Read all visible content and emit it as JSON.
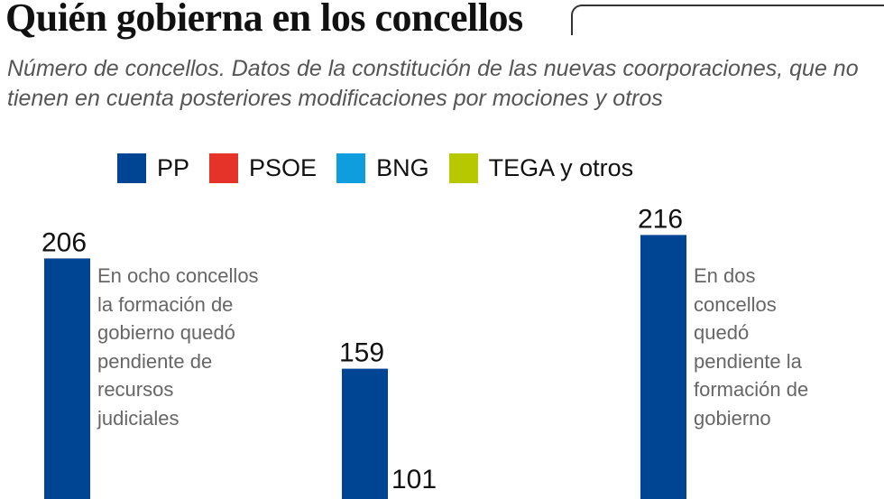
{
  "title": "Quién gobierna en los concellos",
  "subtitle": "Número de concellos. Datos de la constitución de las nuevas coorporaciones, que no tienen en cuenta posteriores modificaciones por mociones y otros",
  "legend": [
    {
      "label": "PP",
      "color": "#004494"
    },
    {
      "label": "PSOE",
      "color": "#e5332a"
    },
    {
      "label": "BNG",
      "color": "#0f9ddd"
    },
    {
      "label": "TEGA y otros",
      "color": "#b7c800"
    }
  ],
  "notes": [
    "En ocho concellos la formación de gobierno quedó pendiente de recursos judiciales",
    "En dos concellos quedó pendiente la formación de gobierno"
  ],
  "chart_data": {
    "type": "bar",
    "title": "Quién gobierna en los concellos",
    "categories": [
      "",
      "",
      ""
    ],
    "series": [
      {
        "name": "PP",
        "color": "#004494",
        "values": [
          206,
          159,
          216
        ]
      },
      {
        "name": "PSOE",
        "color": "#e5332a",
        "values": [
          null,
          101,
          null
        ]
      }
    ],
    "data_labels": true,
    "grid": false,
    "legend_position": "top"
  }
}
